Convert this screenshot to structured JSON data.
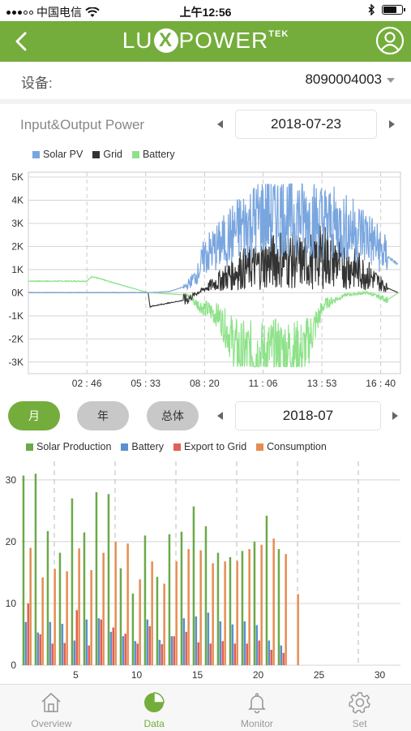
{
  "status_bar": {
    "carrier": "中国电信",
    "time": "上午12:56"
  },
  "header": {
    "logo_pre": "LU",
    "logo_x": "X",
    "logo_post": "POWER",
    "logo_sup": "TEK"
  },
  "device": {
    "label": "设备:",
    "value": "8090004003"
  },
  "power_section": {
    "title": "Input&Output Power",
    "date": "2018-07-23"
  },
  "period_section": {
    "tabs": [
      {
        "label": "月",
        "active": true
      },
      {
        "label": "年",
        "active": false
      },
      {
        "label": "总体",
        "active": false
      }
    ],
    "date": "2018-07"
  },
  "colors": {
    "accent": "#74ad3b",
    "solar_pv": "#7aa6df",
    "grid": "#333333",
    "battery": "#8ee28a",
    "production": "#6aaa48",
    "batt_bar": "#5b8fd0",
    "export": "#e0605a",
    "consumption": "#e58d52"
  },
  "tabbar": {
    "items": [
      {
        "label": "Overview",
        "icon": "home-icon",
        "active": false
      },
      {
        "label": "Data",
        "icon": "pie-chart-icon",
        "active": true
      },
      {
        "label": "Monitor",
        "icon": "bell-icon",
        "active": false
      },
      {
        "label": "Set",
        "icon": "gear-icon",
        "active": false
      }
    ]
  },
  "chart_data": [
    {
      "type": "line",
      "legend": [
        "Solar PV",
        "Grid",
        "Battery"
      ],
      "y_ticks": [
        "5K",
        "4K",
        "3K",
        "2K",
        "1K",
        "0K",
        "-1K",
        "-2K",
        "-3K"
      ],
      "ylim": [
        -3500,
        5000
      ],
      "x_ticks": [
        "02 : 46",
        "05 : 33",
        "08 : 20",
        "11 : 06",
        "13 : 53",
        "16 : 40"
      ],
      "grid": true,
      "series": [
        {
          "name": "Solar PV",
          "x": [
            "00:00",
            "05:40",
            "06:40",
            "07:30",
            "08:00",
            "08:20",
            "09:00",
            "10:00",
            "11:00",
            "12:00",
            "13:00",
            "14:00",
            "15:00",
            "16:00",
            "16:40",
            "17:30"
          ],
          "y": [
            0,
            0,
            50,
            300,
            800,
            1600,
            2000,
            2800,
            3300,
            3400,
            3300,
            3100,
            2800,
            2500,
            1800,
            1200
          ]
        },
        {
          "name": "Grid",
          "x": [
            "00:00",
            "05:40",
            "05:45",
            "07:30",
            "08:00",
            "09:00",
            "10:00",
            "11:00",
            "12:00",
            "13:00",
            "14:00",
            "15:00",
            "16:00",
            "17:00",
            "17:30"
          ],
          "y": [
            0,
            0,
            -600,
            -300,
            0,
            500,
            1000,
            1200,
            1500,
            1300,
            1600,
            1200,
            800,
            200,
            0
          ]
        },
        {
          "name": "Battery",
          "x": [
            "00:00",
            "02:46",
            "03:00",
            "05:40",
            "05:45",
            "07:30",
            "08:00",
            "09:00",
            "10:00",
            "11:00",
            "12:00",
            "13:00",
            "14:00",
            "15:00",
            "16:00",
            "17:00",
            "17:30"
          ],
          "y": [
            500,
            500,
            700,
            0,
            0,
            -100,
            -500,
            -1000,
            -2600,
            -2600,
            -2400,
            -2600,
            -500,
            -100,
            0,
            -300,
            0
          ]
        }
      ]
    },
    {
      "type": "bar",
      "legend": [
        "Solar Production",
        "Battery",
        "Export to Grid",
        "Consumption"
      ],
      "y_ticks": [
        "30",
        "20",
        "10",
        "0"
      ],
      "ylim": [
        0,
        33
      ],
      "x_ticks": [
        "5",
        "10",
        "15",
        "20",
        "25",
        "30"
      ],
      "grid": true,
      "categories": [
        1,
        2,
        3,
        4,
        5,
        6,
        7,
        8,
        9,
        10,
        11,
        12,
        13,
        14,
        15,
        16,
        17,
        18,
        19,
        20,
        21,
        22,
        23,
        24,
        25,
        26,
        27,
        28,
        29,
        30,
        31
      ],
      "series": [
        {
          "name": "Solar Production",
          "values": [
            30.7,
            31,
            21.7,
            18.2,
            27,
            21.5,
            28,
            27.7,
            15.7,
            11.6,
            21,
            14.3,
            21.2,
            21.6,
            25.7,
            22.5,
            18.2,
            17.5,
            18.5,
            20,
            24.2,
            18.8,
            0,
            0,
            0,
            0,
            0,
            0,
            0,
            0,
            0
          ]
        },
        {
          "name": "Battery",
          "values": [
            7,
            5.3,
            7,
            6.7,
            4,
            7.4,
            7.6,
            5.4,
            4.7,
            3.9,
            7.4,
            4.1,
            4.7,
            7.6,
            7.9,
            8.5,
            7.1,
            6.6,
            7.1,
            6.5,
            4,
            3.2,
            0,
            0,
            0,
            0,
            0,
            0,
            0,
            0,
            0
          ]
        },
        {
          "name": "Export to Grid",
          "values": [
            10,
            5,
            3.5,
            3.6,
            8.9,
            3.2,
            7.4,
            6.1,
            5.1,
            3.5,
            6.3,
            3.4,
            4.7,
            5.4,
            3.7,
            3.5,
            3.9,
            3.5,
            3.5,
            4,
            2.5,
            2,
            0,
            0,
            0,
            0,
            0,
            0,
            0,
            0,
            0
          ]
        },
        {
          "name": "Consumption",
          "values": [
            19,
            14.2,
            15.6,
            15.2,
            18.9,
            15.4,
            18.2,
            20,
            19.7,
            13.9,
            16.8,
            13.2,
            16.8,
            18.8,
            18.6,
            16.5,
            16.8,
            16.9,
            18.8,
            19.5,
            20.5,
            18,
            11.5,
            0,
            0,
            0,
            0,
            0,
            0,
            0,
            0
          ]
        }
      ]
    }
  ]
}
